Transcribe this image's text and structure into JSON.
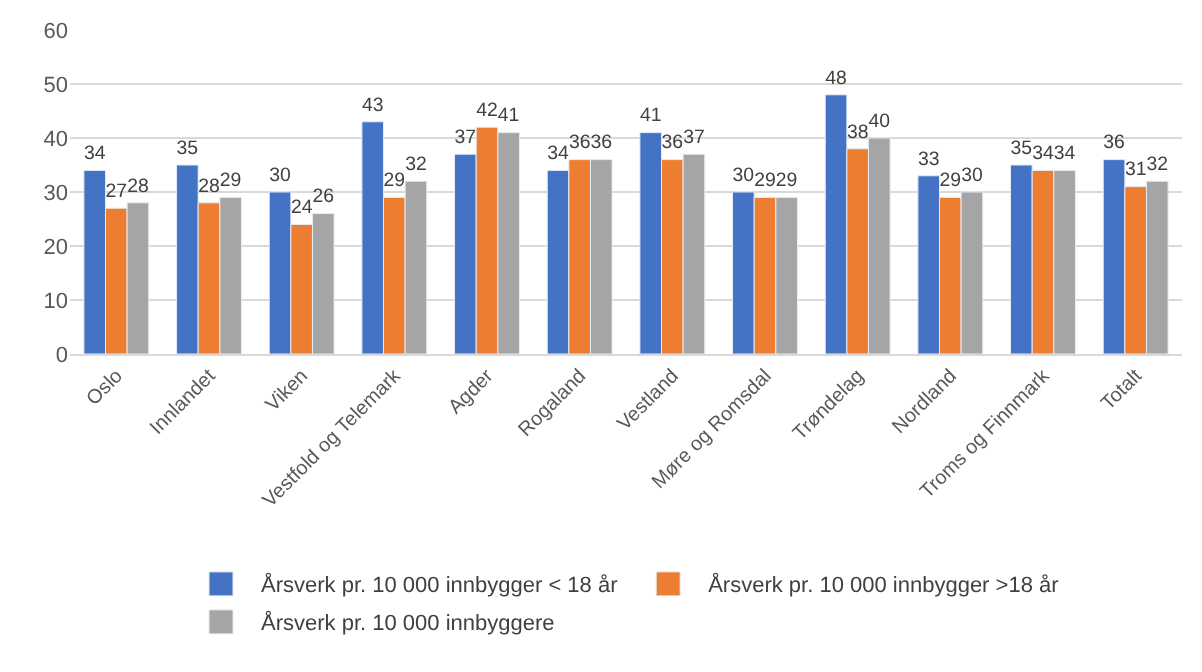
{
  "chart_data": {
    "type": "bar",
    "categories": [
      "Oslo",
      "Innlandet",
      "Viken",
      "Vestfold og Telemark",
      "Agder",
      "Rogaland",
      "Vestland",
      "Møre og Romsdal",
      "Trøndelag",
      "Nordland",
      "Troms og Finnmark",
      "Totalt"
    ],
    "series": [
      {
        "name": "Årsverk pr. 10 000 innbygger < 18 år",
        "color": "#4472c4",
        "values": [
          34,
          35,
          30,
          43,
          37,
          34,
          41,
          30,
          48,
          33,
          35,
          36
        ]
      },
      {
        "name": "Årsverk pr. 10 000 innbygger >18 år",
        "color": "#ed7d31",
        "values": [
          27,
          28,
          24,
          29,
          42,
          36,
          36,
          29,
          38,
          29,
          34,
          31
        ]
      },
      {
        "name": "Årsverk pr. 10 000 innbyggere",
        "color": "#a5a5a5",
        "values": [
          28,
          29,
          26,
          32,
          41,
          36,
          37,
          29,
          40,
          30,
          34,
          32
        ]
      }
    ],
    "ylim": [
      0,
      60
    ],
    "yticks": [
      0,
      10,
      20,
      30,
      40,
      50,
      60
    ],
    "grid": "y",
    "legend": "bottom",
    "data_labels": true
  }
}
